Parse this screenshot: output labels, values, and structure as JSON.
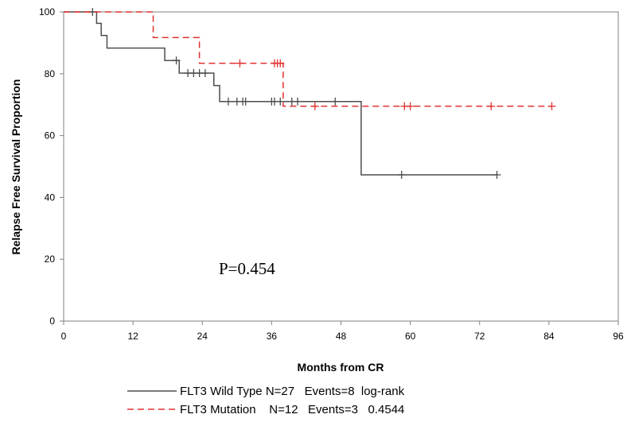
{
  "chart_data": {
    "type": "line",
    "subtype": "kaplan-meier",
    "xlabel": "Months from CR",
    "ylabel": "Relapse Free Survival Proportion",
    "xlim": [
      0,
      96
    ],
    "ylim": [
      0,
      100
    ],
    "xticks": [
      0,
      12,
      24,
      36,
      48,
      60,
      72,
      84,
      96
    ],
    "yticks": [
      0,
      20,
      40,
      60,
      80,
      100
    ],
    "annotation": "P=0.454",
    "grid": false,
    "legend_position": "bottom",
    "series": [
      {
        "name": "FLT3 Wild Type",
        "legend_text": "FLT3 Wild Type N=27   Events=8  log-rank",
        "color": "#4d4d4d",
        "dash": "solid",
        "steps": [
          [
            0,
            100
          ],
          [
            5.7,
            96.3
          ],
          [
            6.5,
            92.4
          ],
          [
            7.5,
            88.3
          ],
          [
            17.5,
            84.3
          ],
          [
            20,
            80.2
          ],
          [
            26,
            76.2
          ],
          [
            27,
            71.0
          ],
          [
            51.5,
            47.3
          ],
          [
            75,
            47.3
          ]
        ],
        "censored": [
          [
            5,
            100
          ],
          [
            19.5,
            84.3
          ],
          [
            21.5,
            80.2
          ],
          [
            22.5,
            80.2
          ],
          [
            23.5,
            80.2
          ],
          [
            24.5,
            80.2
          ],
          [
            28.5,
            71.0
          ],
          [
            30,
            71.0
          ],
          [
            31,
            71.0
          ],
          [
            31.5,
            71.0
          ],
          [
            36,
            71.0
          ],
          [
            36.5,
            71.0
          ],
          [
            37.5,
            71.0
          ],
          [
            39.5,
            71.0
          ],
          [
            40.5,
            71.0
          ],
          [
            47,
            71.0
          ],
          [
            58.5,
            47.3
          ],
          [
            75,
            47.3
          ]
        ]
      },
      {
        "name": "FLT3 Mutation",
        "legend_text": "FLT3 Mutation    N=12   Events=3   0.4544",
        "color": "#e03030",
        "dash": "dashed",
        "steps": [
          [
            0,
            100
          ],
          [
            15.5,
            91.7
          ],
          [
            23.5,
            83.4
          ],
          [
            38,
            69.5
          ],
          [
            84.5,
            69.5
          ]
        ],
        "censored": [
          [
            30.5,
            83.4
          ],
          [
            36.5,
            83.4
          ],
          [
            37,
            83.4
          ],
          [
            37.5,
            83.4
          ],
          [
            43.5,
            69.5
          ],
          [
            59,
            69.5
          ],
          [
            60,
            69.5
          ],
          [
            74,
            69.5
          ],
          [
            84.5,
            69.5
          ]
        ]
      }
    ]
  }
}
